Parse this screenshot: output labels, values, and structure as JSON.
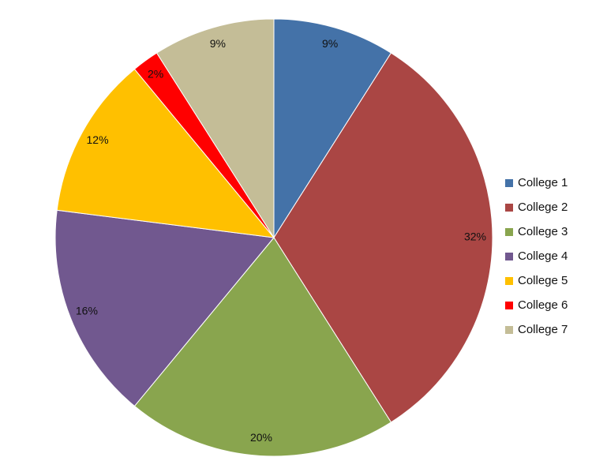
{
  "chart_data": {
    "type": "pie",
    "categories": [
      "College 1",
      "College 2",
      "College 3",
      "College 4",
      "College 5",
      "College 6",
      "College 7"
    ],
    "values": [
      9,
      32,
      20,
      16,
      12,
      2,
      9
    ],
    "labels": [
      "9%",
      "32%",
      "20%",
      "16%",
      "12%",
      "2%",
      "9%"
    ],
    "colors": [
      "#4472A8",
      "#AA4644",
      "#89A54E",
      "#71588F",
      "#FFC000",
      "#FF0000",
      "#C4BD97"
    ],
    "start_angle_deg": 0,
    "direction": "clockwise",
    "legend_position": "right"
  }
}
